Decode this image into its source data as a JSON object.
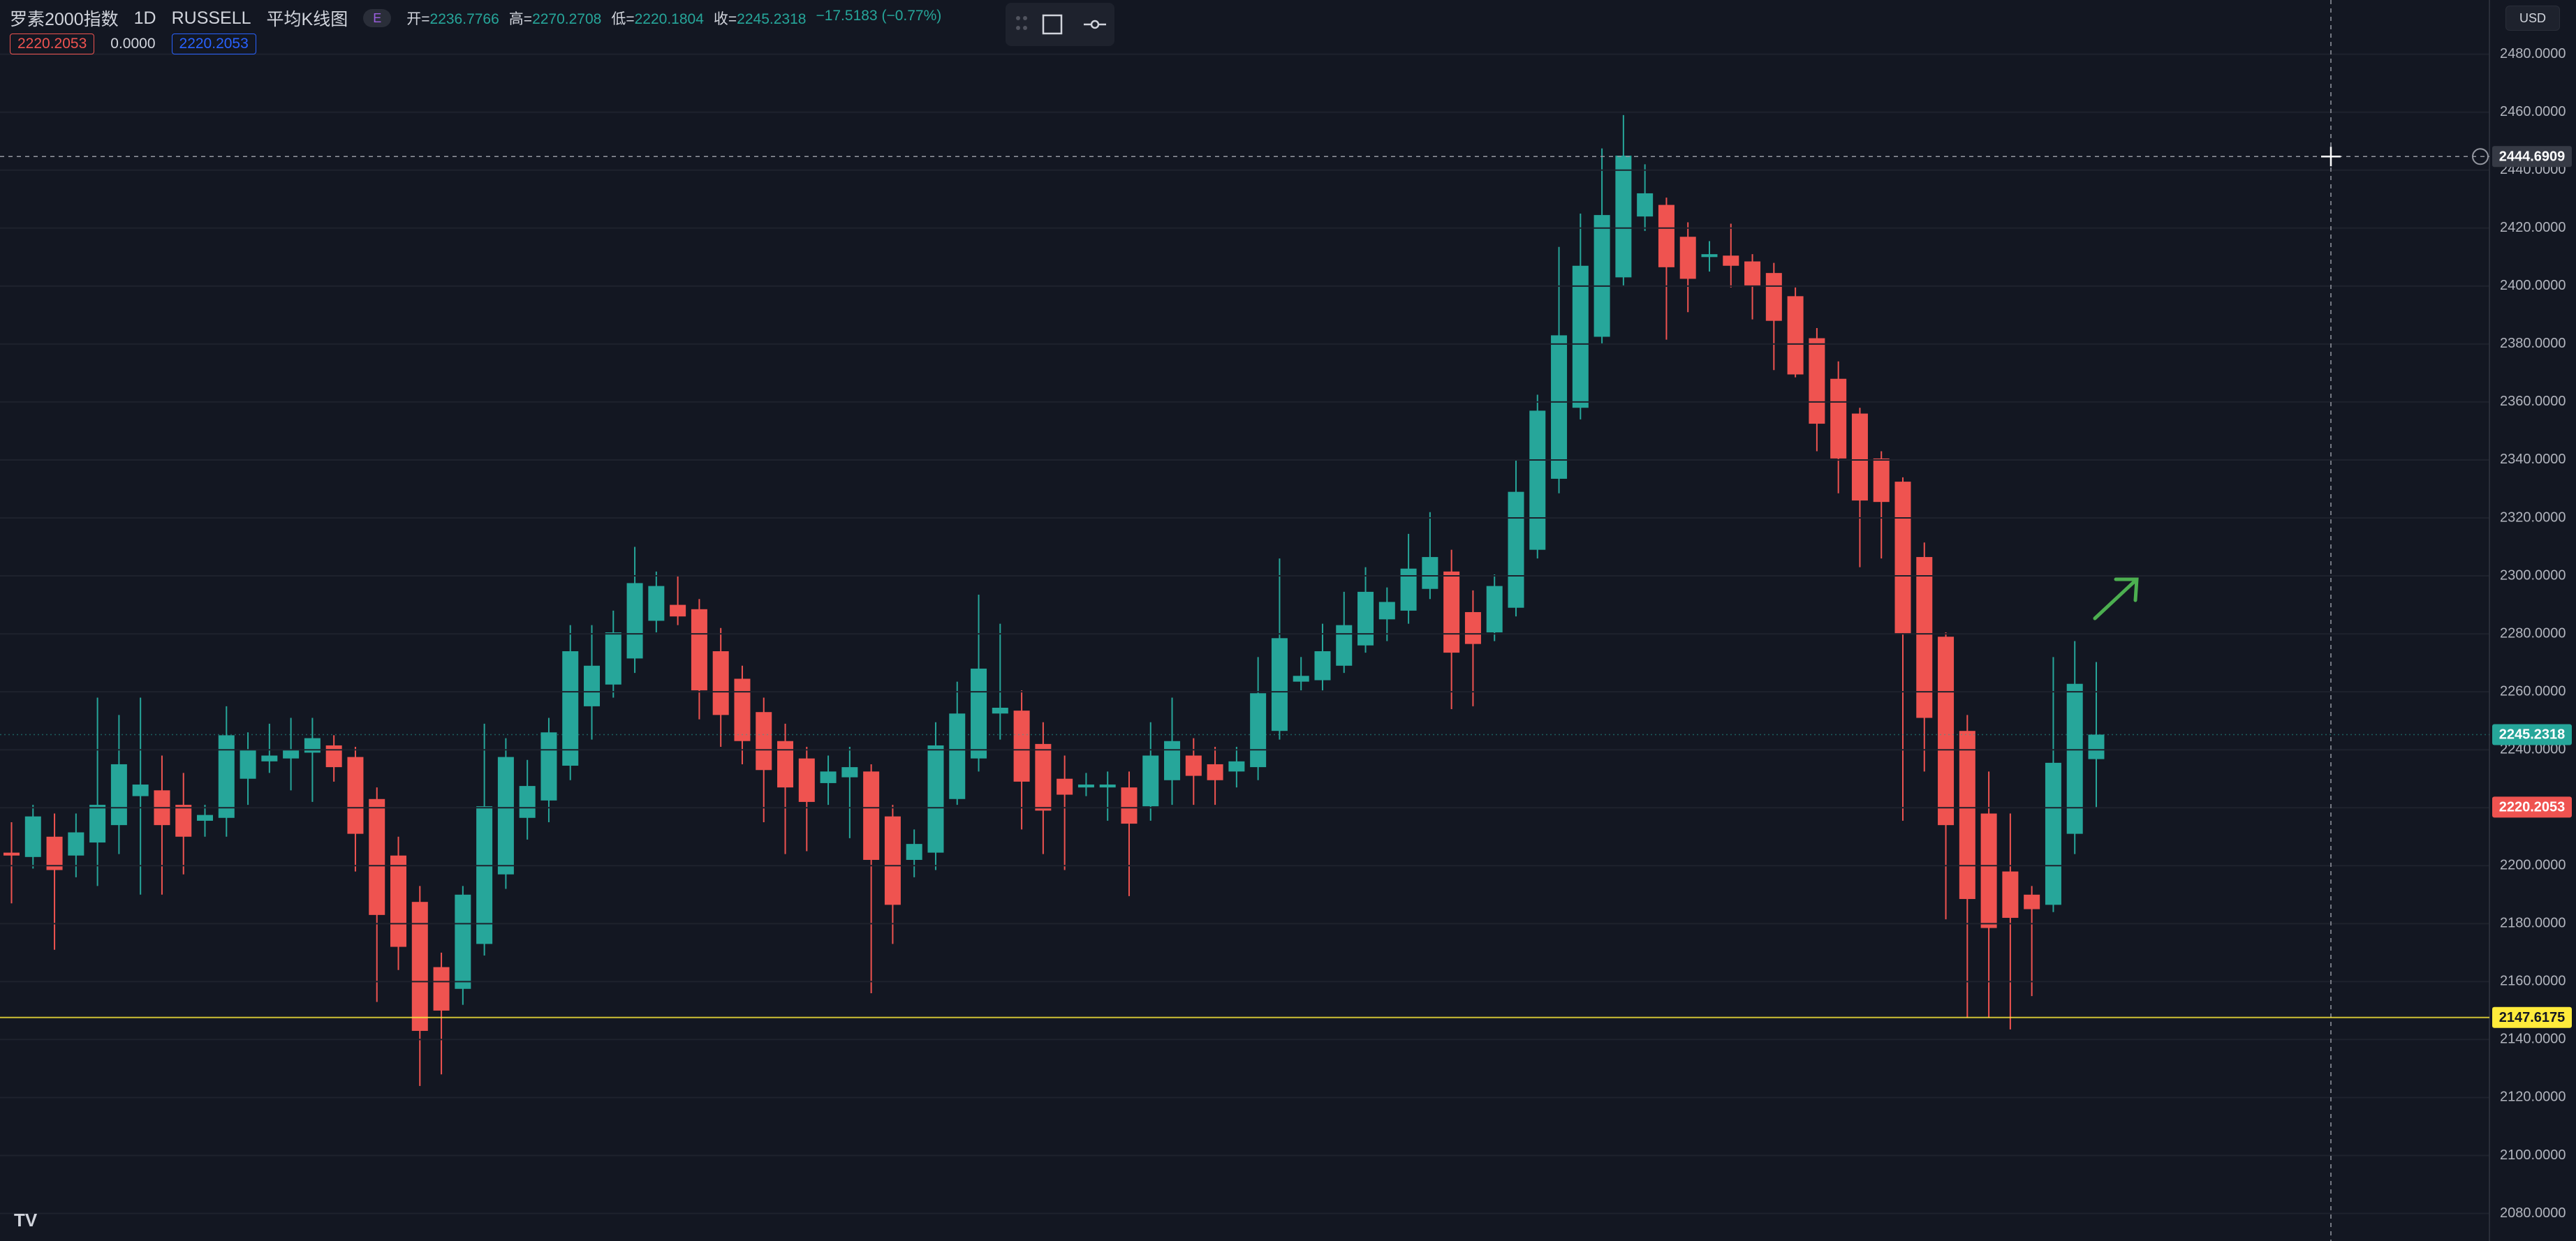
{
  "header": {
    "symbol": "罗素2000指数",
    "interval": "1D",
    "exchange": "RUSSELL",
    "chart_style": "平均K线图",
    "badge": "E",
    "ohlc": [
      {
        "label": "开=",
        "value": "2236.7766"
      },
      {
        "label": "高=",
        "value": "2270.2708"
      },
      {
        "label": "低=",
        "value": "2220.1804"
      },
      {
        "label": "收=",
        "value": "2245.2318"
      }
    ],
    "change": "−17.5183 (−0.77%)",
    "indicator_values": [
      "2220.2053",
      "0.0000",
      "2220.2053"
    ],
    "currency": "USD"
  },
  "chart_data": {
    "type": "candlestick",
    "up_color": "#26a69a",
    "down_color": "#ef5350",
    "grid": true,
    "ylim": [
      2070.5,
      2498.7
    ],
    "yticks": [
      {
        "value": 2080,
        "label": "2080.0000"
      },
      {
        "value": 2100,
        "label": "2100.0000"
      },
      {
        "value": 2120,
        "label": "2120.0000"
      },
      {
        "value": 2140,
        "label": "2140.0000"
      },
      {
        "value": 2160,
        "label": "2160.0000"
      },
      {
        "value": 2180,
        "label": "2180.0000"
      },
      {
        "value": 2200,
        "label": "2200.0000"
      },
      {
        "value": 2220,
        "label": "2220.0000"
      },
      {
        "value": 2240,
        "label": "2240.0000"
      },
      {
        "value": 2260,
        "label": "2260.0000"
      },
      {
        "value": 2280,
        "label": "2280.0000"
      },
      {
        "value": 2300,
        "label": "2300.0000"
      },
      {
        "value": 2320,
        "label": "2320.0000"
      },
      {
        "value": 2340,
        "label": "2340.0000"
      },
      {
        "value": 2360,
        "label": "2360.0000"
      },
      {
        "value": 2380,
        "label": "2380.0000"
      },
      {
        "value": 2400,
        "label": "2400.0000"
      },
      {
        "value": 2420,
        "label": "2420.0000"
      },
      {
        "value": 2440,
        "label": "2440.0000"
      },
      {
        "value": 2460,
        "label": "2460.0000"
      },
      {
        "value": 2480,
        "label": "2480.0000"
      }
    ],
    "open": [
      2204.5,
      2203,
      2210,
      2203.5,
      2208,
      2214,
      2224,
      2226,
      2221,
      2215.5,
      2216.5,
      2230,
      2236,
      2237,
      2239,
      2241.5,
      2237.5,
      2223,
      2203.5,
      2187.5,
      2165,
      2157.5,
      2173,
      2197,
      2216.5,
      2222.5,
      2234.5,
      2255,
      2262.5,
      2271.5,
      2284.5,
      2290,
      2288.5,
      2274,
      2264.5,
      2253,
      2243,
      2237,
      2228.5,
      2230.5,
      2232.5,
      2217,
      2202,
      2204.5,
      2223,
      2237,
      2252.5,
      2253.5,
      2242,
      2230,
      2227,
      2227,
      2227,
      2220.5,
      2229.5,
      2238,
      2235,
      2232.5,
      2234,
      2246.5,
      2263.5,
      2264,
      2269,
      2276,
      2285,
      2288,
      2295.5,
      2301.5,
      2287.5,
      2280.5,
      2289,
      2309,
      2333.5,
      2358,
      2382.5,
      2403,
      2424,
      2428,
      2417,
      2410,
      2410.5,
      2408.5,
      2404.5,
      2396.5,
      2382,
      2368,
      2356,
      2340.5,
      2332.5,
      2306.5,
      2279,
      2246.5,
      2218,
      2198,
      2190,
      2186.5,
      2211,
      2236.7766
    ],
    "high": [
      2215,
      2221,
      2218,
      2218,
      2258,
      2252,
      2258,
      2238,
      2232,
      2221,
      2255,
      2246,
      2249,
      2251,
      2251,
      2245,
      2241,
      2227,
      2210,
      2193,
      2170,
      2193,
      2249,
      2244,
      2236.5,
      2251,
      2283,
      2283,
      2288,
      2310,
      2301.5,
      2300,
      2292,
      2282,
      2269,
      2258,
      2249,
      2241,
      2238,
      2241,
      2235,
      2221,
      2212.5,
      2249.5,
      2263.5,
      2293.5,
      2283.5,
      2260.5,
      2249.5,
      2238,
      2232,
      2232.5,
      2232.5,
      2249.5,
      2258,
      2244,
      2241,
      2241,
      2272,
      2306,
      2272,
      2283.5,
      2294.5,
      2303,
      2296,
      2314.5,
      2322,
      2309,
      2295,
      2300.5,
      2340,
      2362.5,
      2413.5,
      2425,
      2447.5,
      2459,
      2442,
      2430.5,
      2422,
      2415.5,
      2421.5,
      2411,
      2408,
      2399.5,
      2385.5,
      2374,
      2358,
      2343,
      2334,
      2311.5,
      2280.5,
      2252,
      2232.5,
      2218,
      2193,
      2272,
      2277.5,
      2270.2708
    ],
    "low": [
      2187,
      2199,
      2171,
      2196,
      2193,
      2204,
      2190,
      2190,
      2197,
      2210,
      2210,
      2221,
      2232,
      2226,
      2222,
      2229,
      2198,
      2153,
      2164,
      2124,
      2128,
      2152,
      2169,
      2192,
      2209,
      2215,
      2229.5,
      2243.5,
      2258,
      2266.5,
      2280.5,
      2283,
      2250.5,
      2241,
      2235,
      2215,
      2204,
      2205,
      2221,
      2209.5,
      2156,
      2173,
      2196,
      2198.5,
      2221,
      2232.5,
      2243.5,
      2212.5,
      2204,
      2198.5,
      2224,
      2215.5,
      2189.5,
      2215.5,
      2221,
      2221,
      2221,
      2227,
      2229.5,
      2243.5,
      2260.5,
      2260.5,
      2266.5,
      2273.5,
      2277.5,
      2283.5,
      2292,
      2254,
      2255,
      2277.5,
      2286,
      2306,
      2328.5,
      2354,
      2380,
      2400,
      2419,
      2381.5,
      2391,
      2405,
      2399.5,
      2388.5,
      2371,
      2368.5,
      2343,
      2328.5,
      2303,
      2306,
      2215.5,
      2232.5,
      2181.5,
      2147.5,
      2147.5,
      2143.5,
      2155,
      2184,
      2204,
      2220.1804
    ],
    "close": [
      2203.5,
      2217,
      2198.5,
      2211.5,
      2221,
      2235,
      2228,
      2214,
      2210,
      2217.5,
      2245,
      2240,
      2238,
      2240,
      2244,
      2234,
      2211,
      2183,
      2172,
      2143,
      2150,
      2190,
      2220.5,
      2237.5,
      2227.5,
      2246,
      2274,
      2269,
      2280.5,
      2297.5,
      2296.5,
      2286,
      2260.5,
      2252,
      2243,
      2233,
      2227,
      2222,
      2232.5,
      2234,
      2202,
      2186.5,
      2207.5,
      2241.5,
      2252.5,
      2268,
      2254.5,
      2229,
      2219,
      2224.5,
      2228,
      2228,
      2214.5,
      2238,
      2243,
      2231,
      2229.5,
      2236,
      2259.5,
      2278.5,
      2265.5,
      2274,
      2283,
      2294.5,
      2291,
      2302.5,
      2306.5,
      2273.5,
      2276.5,
      2296.5,
      2329,
      2357,
      2383,
      2407,
      2424.5,
      2445,
      2432,
      2406.5,
      2402.5,
      2411,
      2407,
      2400,
      2388,
      2369.5,
      2352.5,
      2340.5,
      2326,
      2325.5,
      2280,
      2251,
      2214,
      2188.5,
      2178.5,
      2182,
      2185,
      2235.5,
      2262.75,
      2245.2318
    ],
    "price_lines": [
      {
        "value": 2444.6909,
        "color": "#363a45",
        "text_color": "#ffffff",
        "style": "crosshair"
      },
      {
        "value": 2245.2318,
        "color": "#26a69a",
        "text_color": "#ffffff",
        "style": "dotted"
      },
      {
        "value": 2220.2053,
        "color": "#ef5350",
        "text_color": "#ffffff",
        "style": "none"
      },
      {
        "value": 2147.6175,
        "color": "#ffeb3b",
        "text_color": "#131722",
        "style": "solid"
      }
    ]
  }
}
